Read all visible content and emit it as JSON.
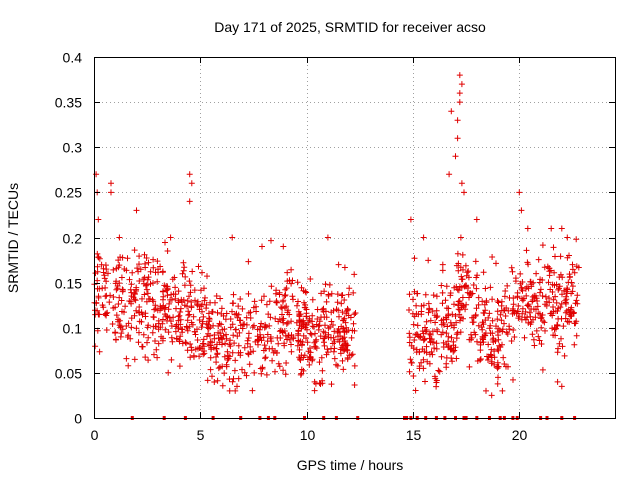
{
  "chart_data": {
    "type": "scatter",
    "title": "Day 171 of 2025, SRMTID for receiver acso",
    "xlabel": "GPS time / hours",
    "ylabel": "SRMTID / TECUs",
    "xlim": [
      0,
      24.5
    ],
    "ylim": [
      0,
      0.4
    ],
    "xticks": [
      0,
      5,
      10,
      15,
      20
    ],
    "xtick_labels": [
      "0",
      "5",
      "10",
      "15",
      "20"
    ],
    "yticks": [
      0,
      0.05,
      0.1,
      0.15,
      0.2,
      0.25,
      0.3,
      0.35,
      0.4
    ],
    "ytick_labels": [
      "0",
      "0.05",
      "0.1",
      "0.15",
      "0.2",
      "0.25",
      "0.3",
      "0.35",
      "0.4"
    ],
    "grid": true,
    "marker": "plus",
    "series": [
      {
        "name": "SRMTID",
        "color": "#e00000",
        "segments": [
          {
            "x_start": 0.0,
            "x_end": 12.3,
            "profile": [
              [
                0.0,
                0.135
              ],
              [
                0.5,
                0.14
              ],
              [
                1.0,
                0.125
              ],
              [
                1.5,
                0.12
              ],
              [
                2.0,
                0.125
              ],
              [
                2.5,
                0.13
              ],
              [
                3.0,
                0.115
              ],
              [
                3.5,
                0.12
              ],
              [
                4.0,
                0.105
              ],
              [
                4.5,
                0.11
              ],
              [
                5.0,
                0.1
              ],
              [
                5.5,
                0.095
              ],
              [
                6.0,
                0.085
              ],
              [
                6.5,
                0.08
              ],
              [
                7.0,
                0.085
              ],
              [
                7.5,
                0.09
              ],
              [
                8.0,
                0.095
              ],
              [
                8.5,
                0.1
              ],
              [
                9.0,
                0.11
              ],
              [
                9.5,
                0.11
              ],
              [
                10.0,
                0.095
              ],
              [
                10.5,
                0.08
              ],
              [
                11.0,
                0.085
              ],
              [
                11.5,
                0.09
              ],
              [
                12.3,
                0.1
              ]
            ]
          },
          {
            "x_start": 14.8,
            "x_end": 22.8,
            "profile": [
              [
                14.8,
                0.1
              ],
              [
                15.5,
                0.095
              ],
              [
                16.0,
                0.085
              ],
              [
                16.5,
                0.095
              ],
              [
                17.0,
                0.12
              ],
              [
                17.5,
                0.14
              ],
              [
                18.0,
                0.115
              ],
              [
                18.5,
                0.09
              ],
              [
                19.0,
                0.085
              ],
              [
                19.5,
                0.11
              ],
              [
                20.0,
                0.14
              ],
              [
                20.5,
                0.13
              ],
              [
                21.0,
                0.12
              ],
              [
                21.5,
                0.125
              ],
              [
                22.0,
                0.12
              ],
              [
                22.8,
                0.13
              ]
            ]
          }
        ],
        "spread": 0.035,
        "point_count": 1400,
        "peaks": [
          [
            0.1,
            0.27
          ],
          [
            0.15,
            0.25
          ],
          [
            0.2,
            0.22
          ],
          [
            0.8,
            0.26
          ],
          [
            0.8,
            0.25
          ],
          [
            2.0,
            0.23
          ],
          [
            3.6,
            0.2
          ],
          [
            4.5,
            0.27
          ],
          [
            4.6,
            0.26
          ],
          [
            4.5,
            0.24
          ],
          [
            6.5,
            0.2
          ],
          [
            7.9,
            0.19
          ],
          [
            8.9,
            0.19
          ],
          [
            11.0,
            0.2
          ],
          [
            11.5,
            0.17
          ],
          [
            14.9,
            0.22
          ],
          [
            15.5,
            0.2
          ],
          [
            16.4,
            0.17
          ],
          [
            16.7,
            0.27
          ],
          [
            16.8,
            0.34
          ],
          [
            17.1,
            0.33
          ],
          [
            17.2,
            0.38
          ],
          [
            17.3,
            0.37
          ],
          [
            17.2,
            0.36
          ],
          [
            17.2,
            0.35
          ],
          [
            17.1,
            0.31
          ],
          [
            17.0,
            0.29
          ],
          [
            17.3,
            0.26
          ],
          [
            17.4,
            0.25
          ],
          [
            18.0,
            0.22
          ],
          [
            18.7,
            0.025
          ],
          [
            19.0,
            0.045
          ],
          [
            20.0,
            0.25
          ],
          [
            20.1,
            0.23
          ],
          [
            20.4,
            0.21
          ],
          [
            21.5,
            0.21
          ],
          [
            22.0,
            0.21
          ],
          [
            22.5,
            0.17
          ],
          [
            21.8,
            0.04
          ],
          [
            22.0,
            0.035
          ]
        ],
        "baseline_marks": [
          1.8,
          3.3,
          4.3,
          5.6,
          6.9,
          7.8,
          8.2,
          8.5,
          9.9,
          10.8,
          11.4,
          12.4,
          14.6,
          14.7,
          14.9,
          15.2,
          15.6,
          16.1,
          16.5,
          17.0,
          17.4,
          17.5,
          18.0,
          18.6,
          19.1,
          19.3,
          19.7,
          19.9,
          21.0,
          21.3,
          22.0,
          22.6
        ]
      }
    ]
  }
}
